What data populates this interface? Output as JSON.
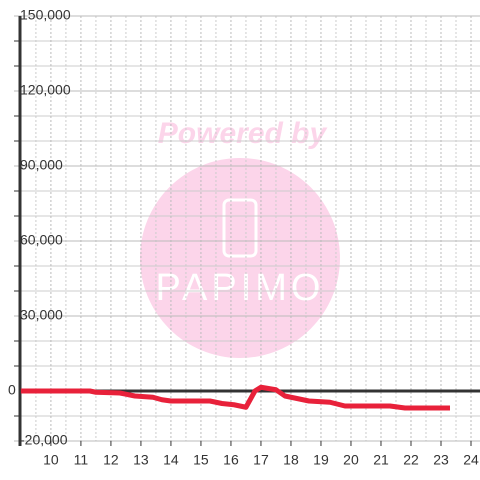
{
  "chart_data": {
    "type": "line",
    "watermark": {
      "line1": "Powered by",
      "line2": "PAPIMO"
    },
    "x": [
      9.0,
      11.3,
      11.5,
      12.3,
      12.8,
      13.4,
      13.7,
      14.0,
      15.3,
      15.7,
      16.1,
      16.5,
      16.8,
      17.0,
      17.5,
      17.8,
      18.2,
      18.6,
      19.3,
      19.8,
      20.5,
      21.3,
      21.8,
      23.3
    ],
    "series": [
      {
        "color": "#e8213a",
        "values": [
          0,
          0,
          -500,
          -800,
          -2000,
          -2500,
          -3500,
          -4000,
          -4000,
          -5000,
          -5500,
          -6500,
          0,
          1500,
          500,
          -2000,
          -3000,
          -4000,
          -4500,
          -6000,
          -6000,
          -6000,
          -6800,
          -6800
        ]
      }
    ],
    "xlim": [
      8.97,
      24.3
    ],
    "ylim": [
      -20000,
      150000
    ],
    "xticks": [
      10,
      11,
      12,
      13,
      14,
      15,
      16,
      17,
      18,
      19,
      20,
      21,
      22,
      23,
      24
    ],
    "yticks": [
      {
        "value": -20000,
        "label": "-20,000"
      },
      0,
      {
        "value": 30000,
        "label": "30,000"
      },
      {
        "value": 60000,
        "label": "60,000"
      },
      {
        "value": 90000,
        "label": "90,000"
      },
      {
        "value": 120000,
        "label": "120,000"
      },
      {
        "value": 150000,
        "label": "150,000"
      }
    ],
    "yminorticks": [
      -10000,
      10000,
      20000,
      40000,
      50000,
      70000,
      80000,
      100000,
      110000,
      130000,
      140000
    ],
    "xminorticks": [
      9.5,
      10.5,
      11.5,
      12.5,
      13.5,
      14.5,
      15.5,
      16.5,
      17.5,
      18.5,
      19.5,
      20.5,
      21.5,
      22.5,
      23.5
    ],
    "grid": true
  }
}
